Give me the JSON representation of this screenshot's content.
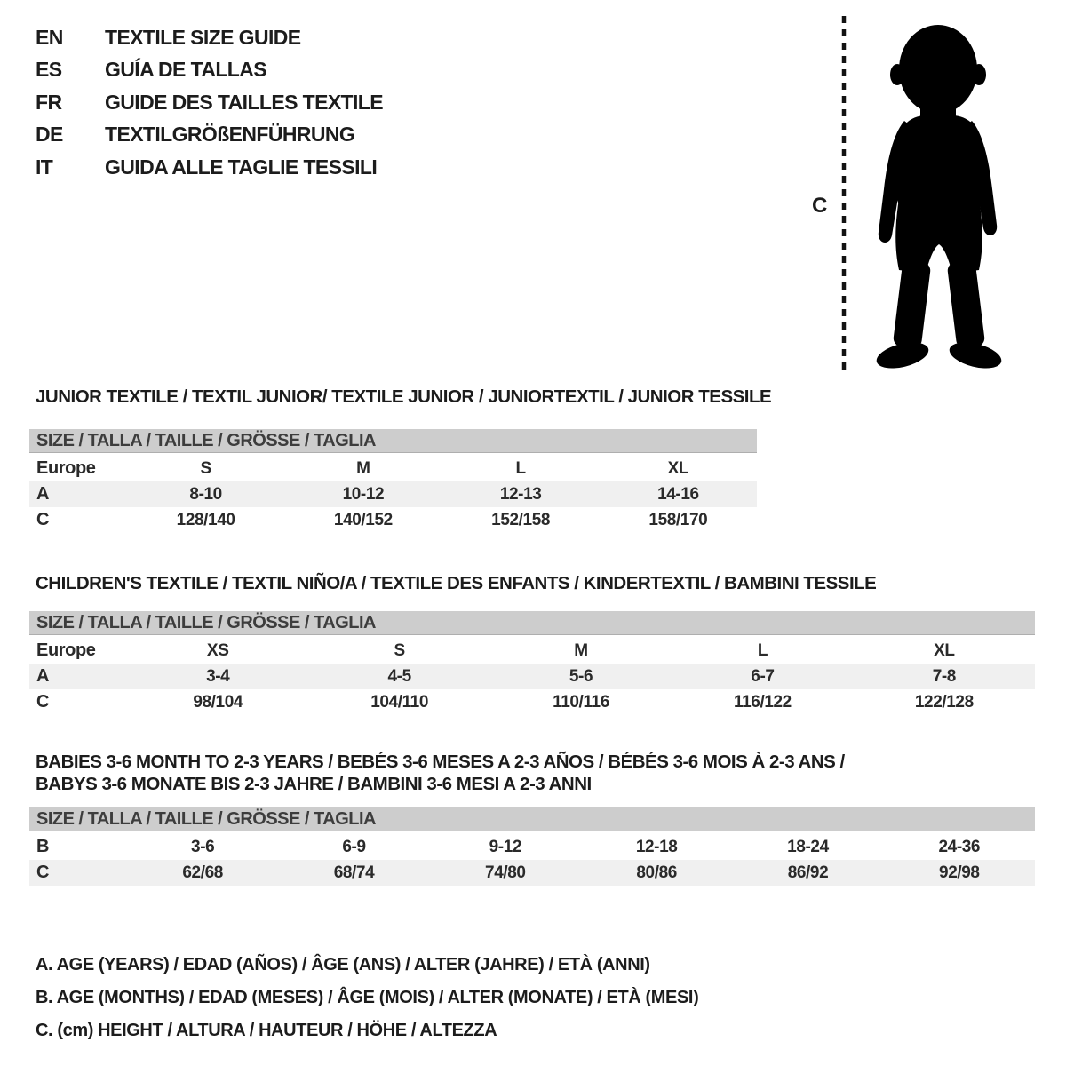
{
  "colors": {
    "background": "#ffffff",
    "table_header_bg": "#cdcdcd",
    "row_shaded_bg": "#f0f0f0",
    "text": "#1c1c1c",
    "silhouette": "#000000"
  },
  "header": {
    "languages": [
      {
        "code": "EN",
        "title": "TEXTILE SIZE GUIDE"
      },
      {
        "code": "ES",
        "title": "GUÍA DE TALLAS"
      },
      {
        "code": "FR",
        "title": "GUIDE DES TAILLES TEXTILE"
      },
      {
        "code": "DE",
        "title": "TEXTILGRÖßENFÜHRUNG"
      },
      {
        "code": "IT",
        "title": "GUIDA ALLE TAGLIE TESSILI"
      }
    ]
  },
  "figure": {
    "measure_label": "C"
  },
  "sections": [
    {
      "id": "junior",
      "title_lines": [
        "JUNIOR TEXTILE / TEXTIL JUNIOR/ TEXTILE JUNIOR / JUNIORTEXTIL / JUNIOR TESSILE"
      ],
      "size_header": "SIZE / TALLA / TAILLE / GRÖSSE / TAGLIA",
      "rows": [
        {
          "label": "Europe",
          "shaded": false,
          "values": [
            "S",
            "M",
            "L",
            "XL"
          ]
        },
        {
          "label": "A",
          "shaded": true,
          "values": [
            "8-10",
            "10-12",
            "12-13",
            "14-16"
          ]
        },
        {
          "label": "C",
          "shaded": false,
          "values": [
            "128/140",
            "140/152",
            "152/158",
            "158/170"
          ]
        }
      ]
    },
    {
      "id": "children",
      "title_lines": [
        "CHILDREN'S TEXTILE / TEXTIL NIÑO/A / TEXTILE DES ENFANTS / KINDERTEXTIL / BAMBINI TESSILE"
      ],
      "size_header": "SIZE / TALLA / TAILLE / GRÖSSE / TAGLIA",
      "rows": [
        {
          "label": "Europe",
          "shaded": false,
          "values": [
            "XS",
            "S",
            "M",
            "L",
            "XL"
          ]
        },
        {
          "label": "A",
          "shaded": true,
          "values": [
            "3-4",
            "4-5",
            "5-6",
            "6-7",
            "7-8"
          ]
        },
        {
          "label": "C",
          "shaded": false,
          "values": [
            "98/104",
            "104/110",
            "110/116",
            "116/122",
            "122/128"
          ]
        }
      ]
    },
    {
      "id": "babies",
      "title_lines": [
        "BABIES 3-6 MONTH TO 2-3 YEARS / BEBÉS 3-6 MESES A 2-3 AÑOS / BÉBÉS 3-6 MOIS À 2-3 ANS /",
        "BABYS 3-6 MONATE BIS 2-3 JAHRE / BAMBINI 3-6 MESI A 2-3 ANNI"
      ],
      "size_header": "SIZE / TALLA / TAILLE / GRÖSSE / TAGLIA",
      "rows": [
        {
          "label": "B",
          "shaded": false,
          "values": [
            "3-6",
            "6-9",
            "9-12",
            "12-18",
            "18-24",
            "24-36"
          ]
        },
        {
          "label": "C",
          "shaded": true,
          "values": [
            "62/68",
            "68/74",
            "74/80",
            "80/86",
            "86/92",
            "92/98"
          ]
        }
      ]
    }
  ],
  "legend": [
    "A. AGE (YEARS) / EDAD (AÑOS) / ÂGE (ANS) / ALTER (JAHRE) / ETÀ (ANNI)",
    "B. AGE (MONTHS) / EDAD (MESES) / ÂGE (MOIS) / ALTER (MONATE) / ETÀ (MESI)",
    "C. (cm) HEIGHT / ALTURA / HAUTEUR / HÖHE / ALTEZZA"
  ]
}
